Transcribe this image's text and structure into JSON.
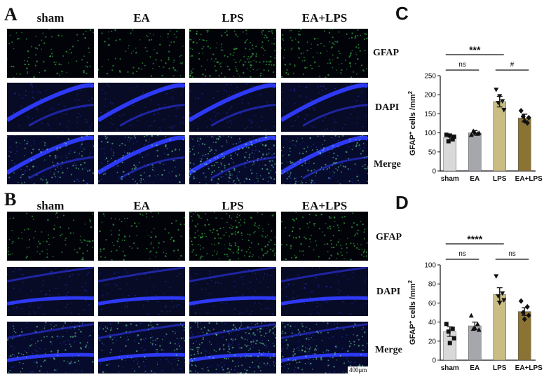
{
  "panels": {
    "A": {
      "letter": "A",
      "columns": [
        "sham",
        "EA",
        "LPS",
        "EA+LPS"
      ],
      "rows": [
        "GFAP",
        "DAPI",
        "Merge"
      ]
    },
    "B": {
      "letter": "B",
      "columns": [
        "sham",
        "EA",
        "LPS",
        "EA+LPS"
      ],
      "rows": [
        "GFAP",
        "DAPI",
        "Merge"
      ],
      "scale_bar": "400μm"
    }
  },
  "colors": {
    "sham": "#d9d9d9",
    "EA": "#a6a6ad",
    "LPS": "#c9bd84",
    "EA+LPS": "#8b7334",
    "gfap": "#39d24a",
    "dapi": "#2c3cff"
  },
  "chart_data": [
    {
      "panel": "C",
      "type": "bar",
      "categories": [
        "sham",
        "EA",
        "LPS",
        "EA+LPS"
      ],
      "values": [
        88,
        100,
        182,
        139
      ],
      "errors": [
        6,
        6,
        14,
        10
      ],
      "points": [
        [
          95,
          83,
          78,
          90,
          93
        ],
        [
          95,
          98,
          105,
          100,
          102
        ],
        [
          213,
          183,
          178,
          160,
          196
        ],
        [
          158,
          126,
          143,
          140,
          131
        ]
      ],
      "markers": [
        "square",
        "triangle",
        "triangle-down",
        "diamond"
      ],
      "ylabel": "GFAP+ cells /mm2",
      "ylim": [
        0,
        250
      ],
      "yticks": [
        0,
        50,
        100,
        150,
        200,
        250
      ],
      "comparisons": [
        {
          "from": "sham",
          "to": "EA",
          "label": "ns",
          "level": 1
        },
        {
          "from": "LPS",
          "to": "EA+LPS",
          "label": "#",
          "level": 1
        },
        {
          "from": "sham",
          "to": "LPS",
          "label": "***",
          "level": 2
        }
      ]
    },
    {
      "panel": "D",
      "type": "bar",
      "categories": [
        "sham",
        "EA",
        "LPS",
        "EA+LPS"
      ],
      "values": [
        30,
        36,
        69,
        51
      ],
      "errors": [
        5,
        4,
        7,
        4
      ],
      "points": [
        [
          38,
          33,
          30,
          23,
          18
        ],
        [
          47,
          38,
          33,
          32,
          34
        ],
        [
          88,
          70,
          67,
          63,
          60
        ],
        [
          62,
          56,
          50,
          47,
          43
        ]
      ],
      "markers": [
        "square",
        "triangle",
        "triangle-down",
        "diamond"
      ],
      "ylabel": "GFAP+ cells /mm2",
      "ylim": [
        0,
        100
      ],
      "yticks": [
        0,
        20,
        40,
        60,
        80,
        100
      ],
      "comparisons": [
        {
          "from": "sham",
          "to": "EA",
          "label": "ns",
          "level": 1
        },
        {
          "from": "LPS",
          "to": "EA+LPS",
          "label": "ns",
          "level": 1
        },
        {
          "from": "sham",
          "to": "LPS",
          "label": "****",
          "level": 2
        }
      ]
    }
  ]
}
